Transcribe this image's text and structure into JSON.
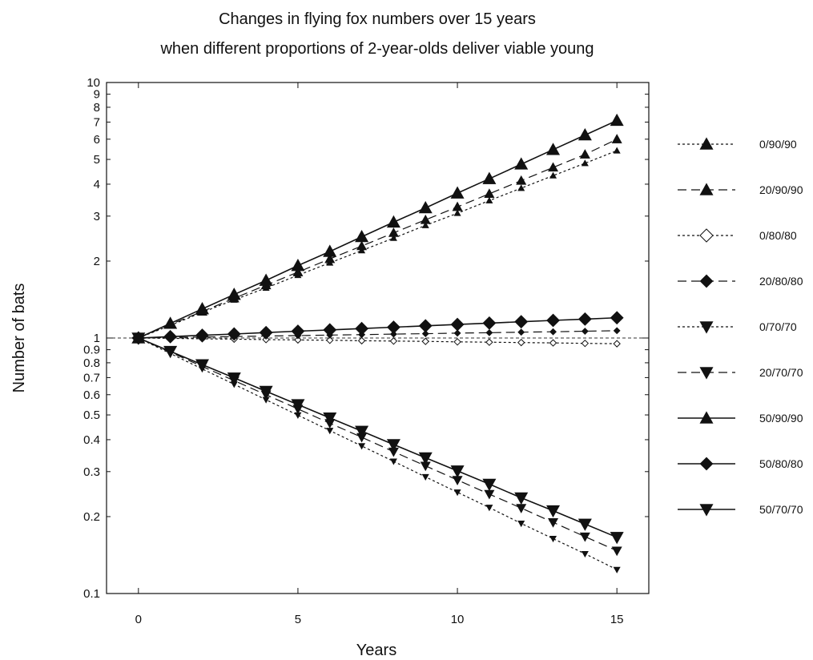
{
  "chart_data": {
    "type": "line",
    "title_line1": "Changes in flying fox numbers over 15 years",
    "title_line2": "when different proportions of 2-year-olds deliver viable young",
    "xlabel": "Years",
    "ylabel": "Number of bats",
    "y_scale": "log",
    "xlim": [
      -1,
      16
    ],
    "ylim": [
      0.1,
      10
    ],
    "x_ticks": [
      "0",
      "5",
      "10",
      "15"
    ],
    "x_tick_values": [
      0,
      5,
      10,
      15
    ],
    "y_ticks": [
      "0.1",
      "0.2",
      "0.3",
      "0.4",
      "0.5",
      "0.6",
      "0.7",
      "0.8",
      "0.9",
      "1",
      "2",
      "3",
      "4",
      "5",
      "6",
      "7",
      "8",
      "9",
      "10"
    ],
    "y_tick_values": [
      0.1,
      0.2,
      0.3,
      0.4,
      0.5,
      0.6,
      0.7,
      0.8,
      0.9,
      1,
      2,
      3,
      4,
      5,
      6,
      7,
      8,
      9,
      10
    ],
    "reference_line_y": 1,
    "grid": false,
    "legend_position": "right",
    "x": [
      0,
      1,
      2,
      3,
      4,
      5,
      6,
      7,
      8,
      9,
      10,
      11,
      12,
      13,
      14,
      15
    ],
    "series": [
      {
        "name": "0/90/90",
        "marker": "triangle-up",
        "marker_size": "small",
        "line_style": "dotted",
        "values": [
          1,
          1.12,
          1.26,
          1.41,
          1.57,
          1.76,
          1.97,
          2.2,
          2.46,
          2.76,
          3.08,
          3.45,
          3.86,
          4.32,
          4.83,
          5.41
        ]
      },
      {
        "name": "20/90/90",
        "marker": "triangle-up",
        "marker_size": "medium",
        "line_style": "dashed",
        "values": [
          1,
          1.13,
          1.27,
          1.43,
          1.61,
          1.81,
          2.04,
          2.29,
          2.58,
          2.9,
          3.26,
          3.67,
          4.13,
          4.65,
          5.23,
          6.0
        ]
      },
      {
        "name": "0/80/80",
        "marker": "diamond-open",
        "marker_size": "small",
        "line_style": "dotted",
        "values": [
          1,
          0.997,
          0.993,
          0.99,
          0.986,
          0.983,
          0.98,
          0.976,
          0.973,
          0.97,
          0.966,
          0.963,
          0.96,
          0.957,
          0.953,
          0.95
        ]
      },
      {
        "name": "20/80/80",
        "marker": "diamond",
        "marker_size": "small",
        "line_style": "dashed",
        "values": [
          1,
          1.004,
          1.009,
          1.013,
          1.018,
          1.022,
          1.027,
          1.031,
          1.036,
          1.04,
          1.045,
          1.049,
          1.054,
          1.058,
          1.063,
          1.068
        ]
      },
      {
        "name": "0/70/70",
        "marker": "triangle-down",
        "marker_size": "small",
        "line_style": "dotted",
        "values": [
          1,
          0.87,
          0.757,
          0.659,
          0.573,
          0.499,
          0.434,
          0.378,
          0.329,
          0.286,
          0.249,
          0.217,
          0.188,
          0.164,
          0.143,
          0.124
        ]
      },
      {
        "name": "20/70/70",
        "marker": "triangle-down",
        "marker_size": "medium",
        "line_style": "dashed",
        "values": [
          1,
          0.88,
          0.774,
          0.681,
          0.6,
          0.528,
          0.464,
          0.409,
          0.359,
          0.316,
          0.278,
          0.245,
          0.216,
          0.19,
          0.167,
          0.147
        ]
      },
      {
        "name": "50/90/90",
        "marker": "triangle-up",
        "marker_size": "large",
        "line_style": "solid",
        "values": [
          1,
          1.14,
          1.3,
          1.48,
          1.68,
          1.92,
          2.18,
          2.49,
          2.84,
          3.23,
          3.69,
          4.2,
          4.79,
          5.46,
          6.23,
          7.1
        ]
      },
      {
        "name": "50/80/80",
        "marker": "diamond",
        "marker_size": "large",
        "line_style": "solid",
        "values": [
          1,
          1.012,
          1.025,
          1.037,
          1.05,
          1.063,
          1.076,
          1.089,
          1.102,
          1.116,
          1.13,
          1.144,
          1.158,
          1.172,
          1.186,
          1.2
        ]
      },
      {
        "name": "50/70/70",
        "marker": "triangle-down",
        "marker_size": "large",
        "line_style": "solid",
        "values": [
          1,
          0.887,
          0.787,
          0.698,
          0.619,
          0.549,
          0.487,
          0.432,
          0.383,
          0.34,
          0.302,
          0.268,
          0.237,
          0.211,
          0.187,
          0.166
        ]
      }
    ]
  }
}
